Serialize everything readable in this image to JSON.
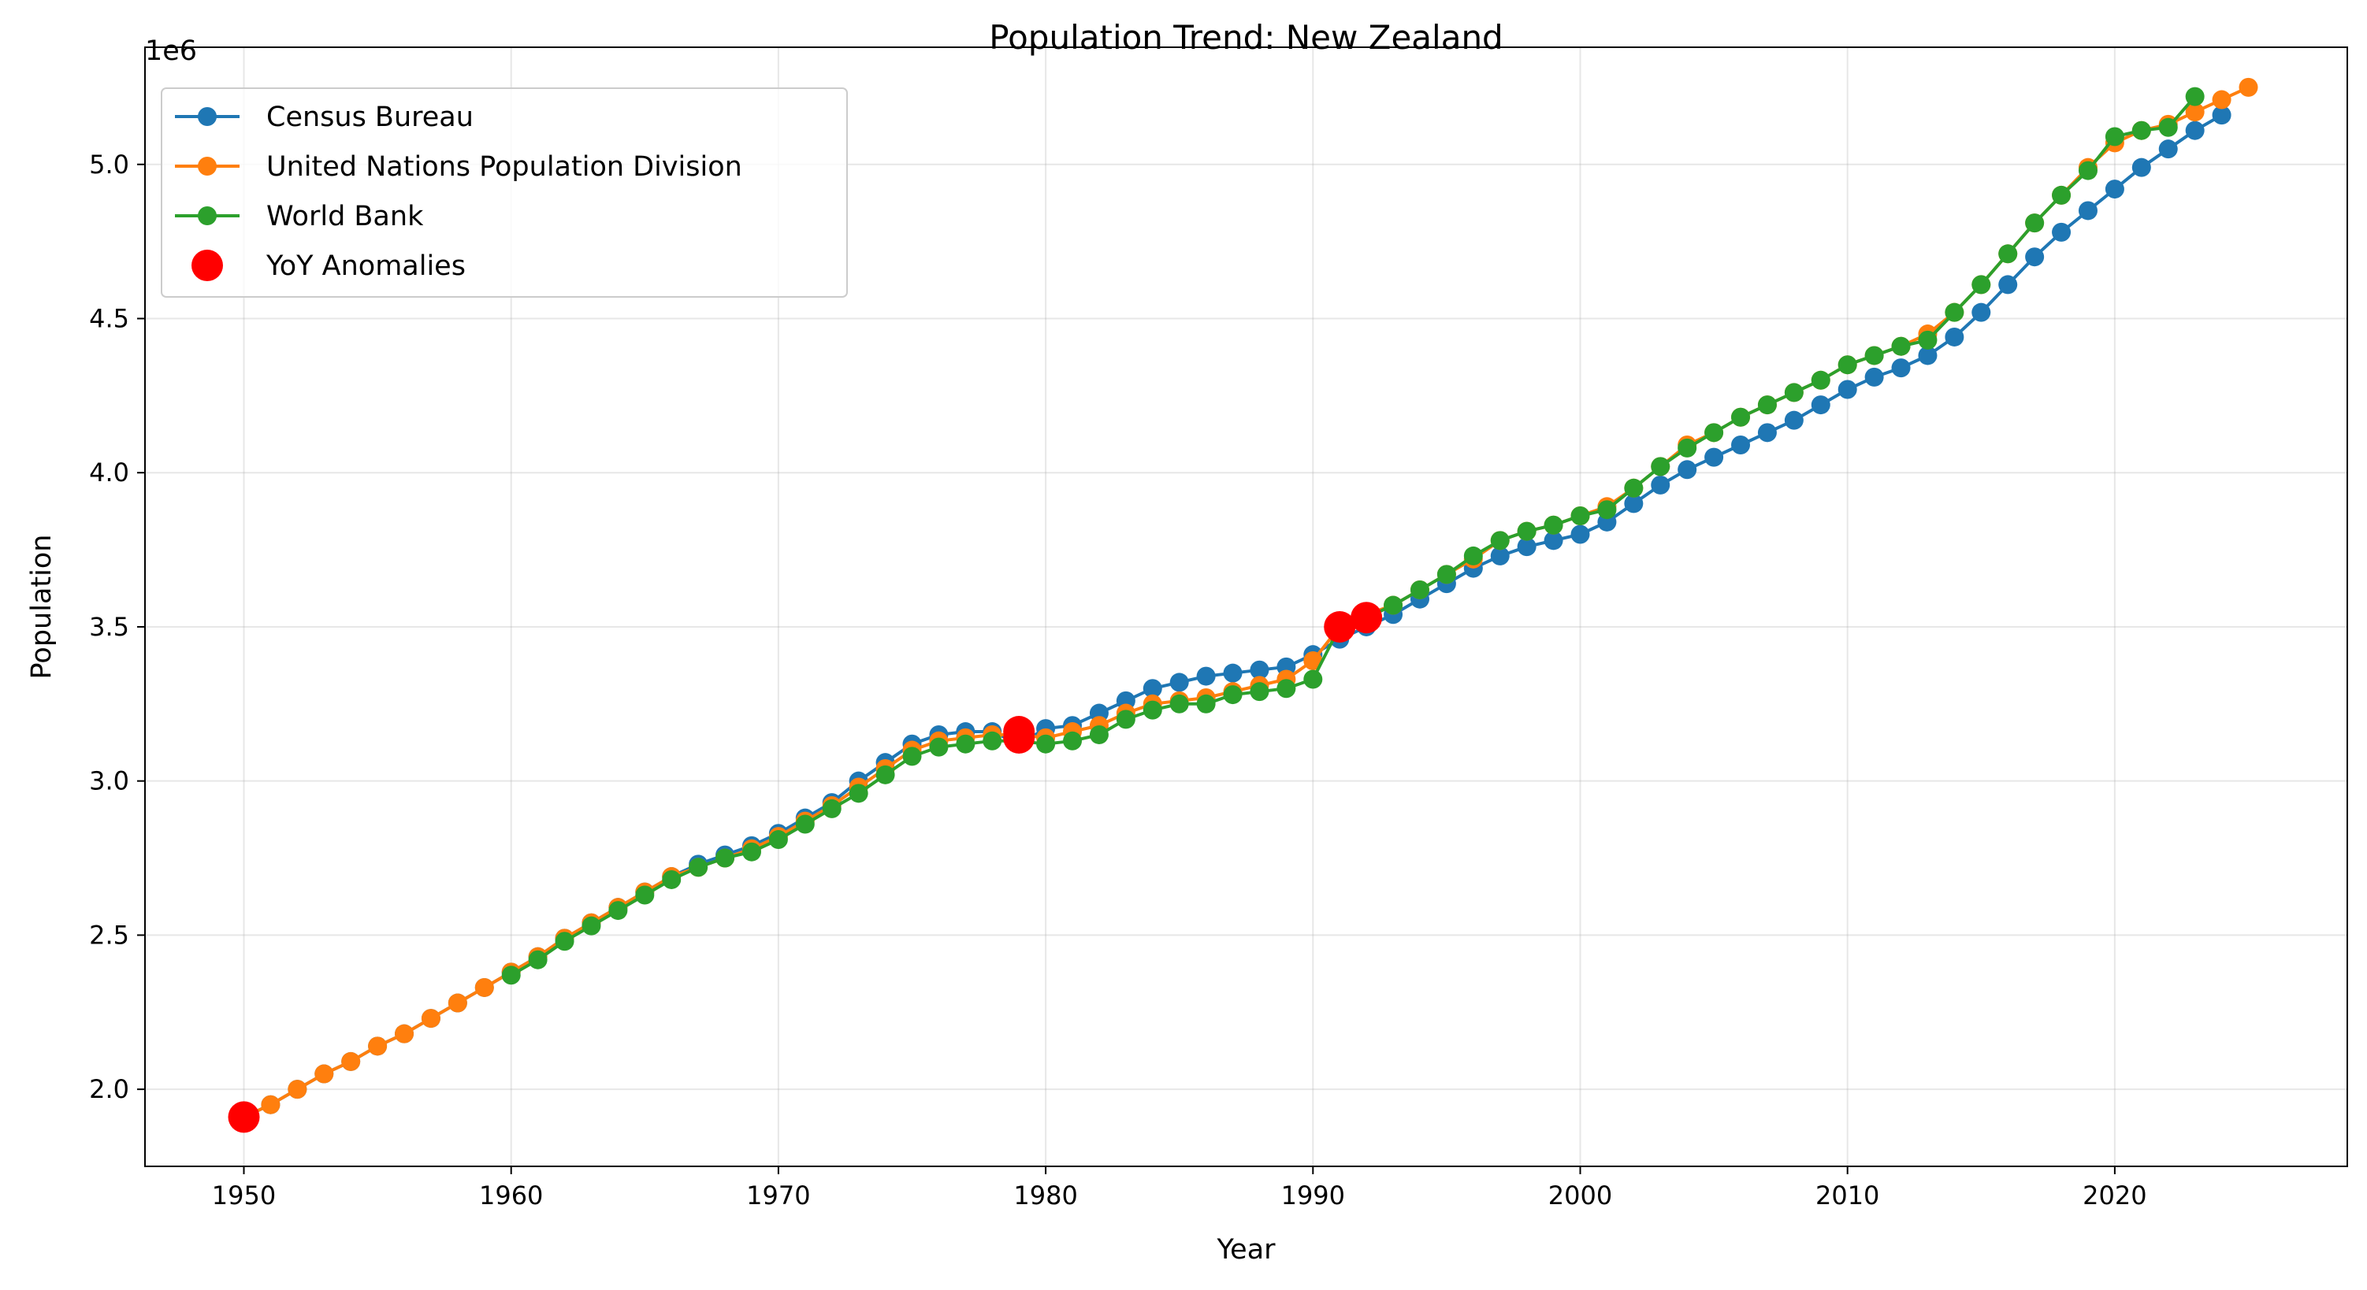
{
  "chart_data": {
    "type": "line",
    "title": "Population Trend: New Zealand",
    "xlabel": "Year",
    "ylabel": "Population",
    "y_offset_text": "1e6",
    "xlim": [
      1946.3,
      2028.7
    ],
    "ylim": [
      1.75,
      5.38
    ],
    "x_ticks": [
      1950,
      1960,
      1970,
      1980,
      1990,
      2000,
      2010,
      2020
    ],
    "y_ticks": [
      2.0,
      2.5,
      3.0,
      3.5,
      4.0,
      4.5,
      5.0
    ],
    "y_tick_labels": [
      "2.0",
      "2.5",
      "3.0",
      "3.5",
      "4.0",
      "4.5",
      "5.0"
    ],
    "y_units": "millions (1e6)",
    "grid": true,
    "legend_position": "top-left",
    "series": [
      {
        "name": "Census Bureau",
        "color": "#1f77b4",
        "x": [
          1950,
          1951,
          1952,
          1953,
          1954,
          1955,
          1956,
          1957,
          1958,
          1959,
          1960,
          1961,
          1962,
          1963,
          1964,
          1965,
          1966,
          1967,
          1968,
          1969,
          1970,
          1971,
          1972,
          1973,
          1974,
          1975,
          1976,
          1977,
          1978,
          1979,
          1980,
          1981,
          1982,
          1983,
          1984,
          1985,
          1986,
          1987,
          1988,
          1989,
          1990,
          1991,
          1992,
          1993,
          1994,
          1995,
          1996,
          1997,
          1998,
          1999,
          2000,
          2001,
          2002,
          2003,
          2004,
          2005,
          2006,
          2007,
          2008,
          2009,
          2010,
          2011,
          2012,
          2013,
          2014,
          2015,
          2016,
          2017,
          2018,
          2019,
          2020,
          2021,
          2022,
          2023,
          2024
        ],
        "values": [
          1.91,
          1.95,
          2.0,
          2.05,
          2.09,
          2.14,
          2.18,
          2.23,
          2.28,
          2.33,
          2.38,
          2.43,
          2.49,
          2.54,
          2.59,
          2.64,
          2.69,
          2.73,
          2.76,
          2.79,
          2.83,
          2.88,
          2.93,
          3.0,
          3.06,
          3.12,
          3.15,
          3.16,
          3.16,
          3.12,
          3.17,
          3.18,
          3.22,
          3.26,
          3.3,
          3.32,
          3.34,
          3.35,
          3.36,
          3.37,
          3.41,
          3.46,
          3.5,
          3.54,
          3.59,
          3.64,
          3.69,
          3.73,
          3.76,
          3.78,
          3.8,
          3.84,
          3.9,
          3.96,
          4.01,
          4.05,
          4.09,
          4.13,
          4.17,
          4.22,
          4.27,
          4.31,
          4.34,
          4.38,
          4.44,
          4.52,
          4.61,
          4.7,
          4.78,
          4.85,
          4.92,
          4.99,
          5.05,
          5.11,
          5.16
        ]
      },
      {
        "name": "United Nations Population Division",
        "color": "#ff7f0e",
        "x": [
          1950,
          1951,
          1952,
          1953,
          1954,
          1955,
          1956,
          1957,
          1958,
          1959,
          1960,
          1961,
          1962,
          1963,
          1964,
          1965,
          1966,
          1967,
          1968,
          1969,
          1970,
          1971,
          1972,
          1973,
          1974,
          1975,
          1976,
          1977,
          1978,
          1979,
          1980,
          1981,
          1982,
          1983,
          1984,
          1985,
          1986,
          1987,
          1988,
          1989,
          1990,
          1991,
          1992,
          1993,
          1994,
          1995,
          1996,
          1997,
          1998,
          1999,
          2000,
          2001,
          2002,
          2003,
          2004,
          2005,
          2006,
          2007,
          2008,
          2009,
          2010,
          2011,
          2012,
          2013,
          2014,
          2015,
          2016,
          2017,
          2018,
          2019,
          2020,
          2021,
          2022,
          2023,
          2024,
          2025
        ],
        "values": [
          1.91,
          1.95,
          2.0,
          2.05,
          2.09,
          2.14,
          2.18,
          2.23,
          2.28,
          2.33,
          2.38,
          2.43,
          2.49,
          2.54,
          2.59,
          2.64,
          2.69,
          2.72,
          2.75,
          2.78,
          2.82,
          2.87,
          2.92,
          2.98,
          3.04,
          3.1,
          3.13,
          3.14,
          3.15,
          3.15,
          3.14,
          3.16,
          3.18,
          3.22,
          3.25,
          3.26,
          3.27,
          3.29,
          3.31,
          3.33,
          3.39,
          3.5,
          3.54,
          3.57,
          3.62,
          3.67,
          3.72,
          3.78,
          3.81,
          3.83,
          3.86,
          3.89,
          3.95,
          4.02,
          4.09,
          4.13,
          4.18,
          4.22,
          4.26,
          4.3,
          4.35,
          4.38,
          4.41,
          4.45,
          4.52,
          4.61,
          4.71,
          4.81,
          4.9,
          4.99,
          5.07,
          5.11,
          5.13,
          5.17,
          5.21,
          5.25
        ]
      },
      {
        "name": "World Bank",
        "color": "#2ca02c",
        "x": [
          1960,
          1961,
          1962,
          1963,
          1964,
          1965,
          1966,
          1967,
          1968,
          1969,
          1970,
          1971,
          1972,
          1973,
          1974,
          1975,
          1976,
          1977,
          1978,
          1979,
          1980,
          1981,
          1982,
          1983,
          1984,
          1985,
          1986,
          1987,
          1988,
          1989,
          1990,
          1991,
          1992,
          1993,
          1994,
          1995,
          1996,
          1997,
          1998,
          1999,
          2000,
          2001,
          2002,
          2003,
          2004,
          2005,
          2006,
          2007,
          2008,
          2009,
          2010,
          2011,
          2012,
          2013,
          2014,
          2015,
          2016,
          2017,
          2018,
          2019,
          2020,
          2021,
          2022,
          2023
        ],
        "values": [
          2.37,
          2.42,
          2.48,
          2.53,
          2.58,
          2.63,
          2.68,
          2.72,
          2.75,
          2.77,
          2.81,
          2.86,
          2.91,
          2.96,
          3.02,
          3.08,
          3.11,
          3.12,
          3.13,
          3.13,
          3.12,
          3.13,
          3.15,
          3.2,
          3.23,
          3.25,
          3.25,
          3.28,
          3.29,
          3.3,
          3.33,
          3.5,
          3.53,
          3.57,
          3.62,
          3.67,
          3.73,
          3.78,
          3.81,
          3.83,
          3.86,
          3.88,
          3.95,
          4.02,
          4.08,
          4.13,
          4.18,
          4.22,
          4.26,
          4.3,
          4.35,
          4.38,
          4.41,
          4.43,
          4.52,
          4.61,
          4.71,
          4.81,
          4.9,
          4.98,
          5.09,
          5.11,
          5.12,
          5.22
        ]
      },
      {
        "name": "YoY Anomalies",
        "color": "#ff0000",
        "kind": "scatter",
        "x": [
          1950,
          1979,
          1979,
          1991,
          1992
        ],
        "values": [
          1.91,
          3.16,
          3.14,
          3.5,
          3.53
        ]
      }
    ]
  }
}
